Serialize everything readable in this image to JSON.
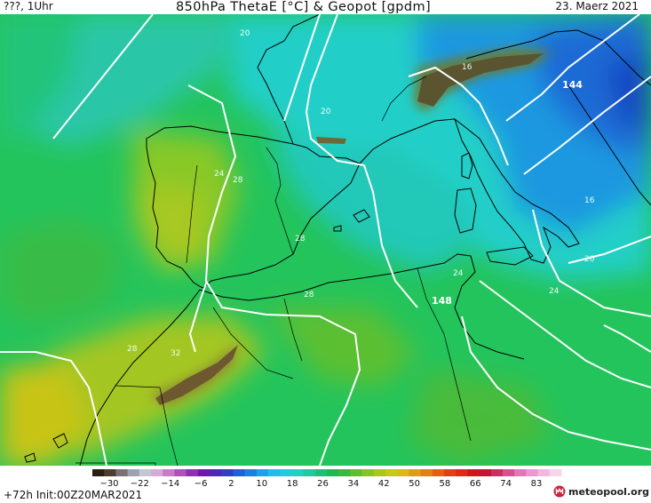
{
  "header": {
    "left": "???, 1Uhr",
    "title": "850hPa ThetaE [°C] & Geopot [gpdm]",
    "date": "23. Maerz 2021"
  },
  "map": {
    "thetae_labels": [
      {
        "text": "20"
      },
      {
        "text": "16"
      },
      {
        "text": "20"
      },
      {
        "text": "24"
      },
      {
        "text": "28"
      },
      {
        "text": "28"
      },
      {
        "text": "28"
      },
      {
        "text": "24"
      },
      {
        "text": "16"
      },
      {
        "text": "20"
      },
      {
        "text": "24"
      },
      {
        "text": "28"
      },
      {
        "text": "32"
      }
    ],
    "geopot_labels": [
      {
        "text": "144"
      },
      {
        "text": "148"
      }
    ]
  },
  "legend": {
    "ticks": [
      "−30",
      "−22",
      "−14",
      "−6",
      "2",
      "10",
      "18",
      "26",
      "34",
      "42",
      "50",
      "58",
      "66",
      "74",
      "83"
    ],
    "colors": [
      "#2a1f12",
      "#4e3d2e",
      "#7d6f73",
      "#a0a0b4",
      "#c6c6d2",
      "#d7a9d7",
      "#c87cc8",
      "#b050b8",
      "#9030b0",
      "#7018a8",
      "#5028b0",
      "#3040c0",
      "#2060d8",
      "#1c80e0",
      "#20a0e8",
      "#22bce8",
      "#20ccd8",
      "#22d0c0",
      "#20c8a0",
      "#20bf78",
      "#22b850",
      "#3cb83c",
      "#5cbf30",
      "#84c428",
      "#a8c820",
      "#c8c818",
      "#dcb818",
      "#e09c18",
      "#e08018",
      "#e06018",
      "#e04018",
      "#e02a18",
      "#d01818",
      "#c01830",
      "#c83060",
      "#d85090",
      "#e078b8",
      "#ec98d0",
      "#f4b8e0",
      "#f8d4ec"
    ]
  },
  "footer": {
    "left": "+72h  Init:00Z20MAR2021",
    "logo": "meteopool.org"
  },
  "colors": {
    "contour": "#ffffff",
    "coast": "#000000",
    "brand": "#d0203a"
  }
}
